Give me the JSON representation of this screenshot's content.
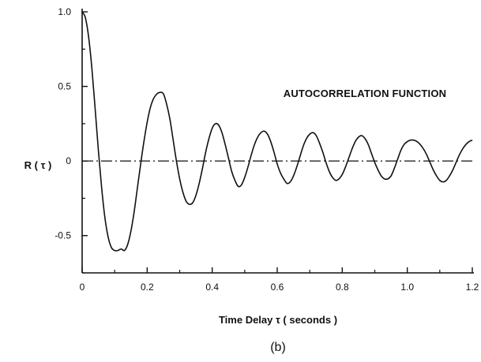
{
  "chart_data": {
    "type": "line",
    "title": "",
    "annotation": "AUTOCORRELATION FUNCTION",
    "xlabel": "Time Delay τ ( seconds )",
    "ylabel": "R ( τ )",
    "caption": "(b)",
    "xlim": [
      0,
      1.2
    ],
    "ylim": [
      -0.75,
      1.0
    ],
    "x_ticks": [
      0,
      0.2,
      0.4,
      0.6,
      0.8,
      1.0,
      1.2
    ],
    "x_tick_labels": [
      "0",
      "0.2",
      "0.4",
      "0.6",
      "0.8",
      "1.0",
      "1.2"
    ],
    "y_ticks": [
      1.0,
      0.5,
      0,
      -0.5
    ],
    "y_tick_labels": [
      "1.0",
      "0.5",
      "0",
      "-0.5"
    ],
    "grid": false,
    "zero_line": true,
    "series": [
      {
        "x": [
          0,
          0.01,
          0.02,
          0.03,
          0.04,
          0.05,
          0.06,
          0.07,
          0.08,
          0.09,
          0.1,
          0.11,
          0.12,
          0.13,
          0.14,
          0.15,
          0.16,
          0.17,
          0.18,
          0.19,
          0.2,
          0.21,
          0.22,
          0.23,
          0.24,
          0.25,
          0.26,
          0.27,
          0.28,
          0.29,
          0.3,
          0.31,
          0.32,
          0.33,
          0.34,
          0.35,
          0.36,
          0.37,
          0.38,
          0.39,
          0.4,
          0.41,
          0.42,
          0.43,
          0.44,
          0.45,
          0.46,
          0.47,
          0.48,
          0.49,
          0.5,
          0.51,
          0.52,
          0.53,
          0.54,
          0.55,
          0.56,
          0.57,
          0.58,
          0.59,
          0.6,
          0.61,
          0.62,
          0.63,
          0.64,
          0.65,
          0.66,
          0.67,
          0.68,
          0.69,
          0.7,
          0.71,
          0.72,
          0.73,
          0.74,
          0.75,
          0.76,
          0.77,
          0.78,
          0.79,
          0.8,
          0.81,
          0.82,
          0.83,
          0.84,
          0.85,
          0.86,
          0.87,
          0.88,
          0.89,
          0.9,
          0.91,
          0.92,
          0.93,
          0.94,
          0.95,
          0.96,
          0.97,
          0.98,
          0.99,
          1.0,
          1.01,
          1.02,
          1.03,
          1.04,
          1.05,
          1.06,
          1.07,
          1.08,
          1.09,
          1.1,
          1.11,
          1.12,
          1.13,
          1.14,
          1.15,
          1.16,
          1.17,
          1.18,
          1.19,
          1.2
        ],
        "y": [
          1.0,
          0.96,
          0.83,
          0.62,
          0.35,
          0.07,
          -0.18,
          -0.38,
          -0.51,
          -0.58,
          -0.6,
          -0.6,
          -0.59,
          -0.6,
          -0.56,
          -0.47,
          -0.34,
          -0.18,
          -0.02,
          0.13,
          0.26,
          0.36,
          0.42,
          0.45,
          0.46,
          0.45,
          0.38,
          0.28,
          0.14,
          0.0,
          -0.12,
          -0.21,
          -0.27,
          -0.29,
          -0.28,
          -0.23,
          -0.15,
          -0.05,
          0.06,
          0.15,
          0.22,
          0.25,
          0.24,
          0.19,
          0.11,
          0.02,
          -0.07,
          -0.13,
          -0.17,
          -0.16,
          -0.11,
          -0.04,
          0.04,
          0.11,
          0.16,
          0.19,
          0.2,
          0.18,
          0.13,
          0.06,
          -0.02,
          -0.08,
          -0.12,
          -0.15,
          -0.14,
          -0.1,
          -0.04,
          0.03,
          0.1,
          0.15,
          0.18,
          0.19,
          0.17,
          0.12,
          0.06,
          -0.01,
          -0.07,
          -0.11,
          -0.13,
          -0.12,
          -0.09,
          -0.04,
          0.02,
          0.08,
          0.13,
          0.16,
          0.17,
          0.15,
          0.11,
          0.05,
          -0.01,
          -0.06,
          -0.1,
          -0.12,
          -0.12,
          -0.1,
          -0.05,
          0.01,
          0.07,
          0.11,
          0.13,
          0.14,
          0.14,
          0.13,
          0.11,
          0.08,
          0.04,
          -0.01,
          -0.06,
          -0.1,
          -0.13,
          -0.14,
          -0.13,
          -0.1,
          -0.06,
          -0.01,
          0.04,
          0.08,
          0.11,
          0.13,
          0.14
        ]
      }
    ]
  }
}
